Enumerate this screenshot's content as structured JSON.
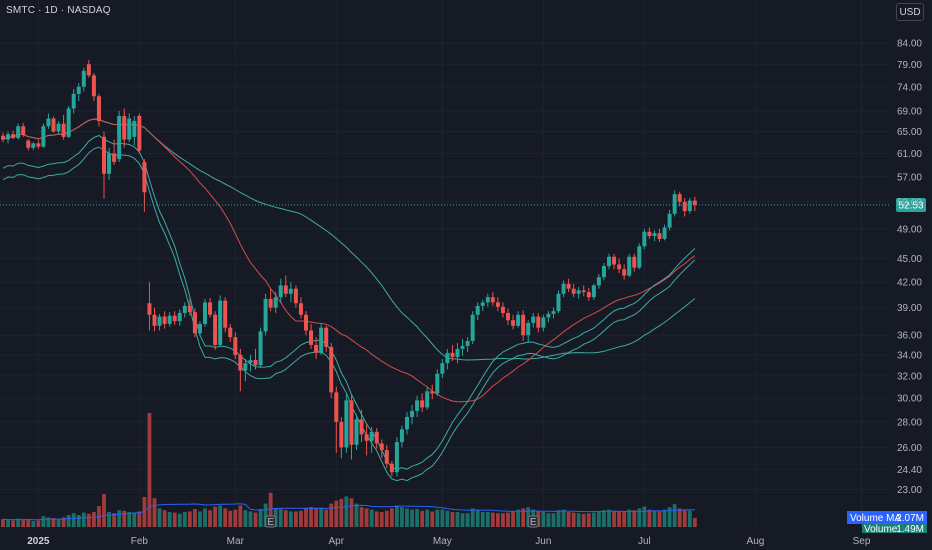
{
  "header": {
    "symbol_line": "SMTC · 1D · NASDAQ",
    "currency_button": "USD"
  },
  "colors": {
    "background": "#161a25",
    "grid": "#1f2330",
    "up": "#26a69a",
    "down": "#ef5350",
    "ma_teal": "#3fb3a9",
    "ma_red": "#e24e4e",
    "volume_ma": "#2962ff",
    "price_label": "#26a69a"
  },
  "chart_data": {
    "type": "candlestick",
    "y_scale": "log",
    "ylim": [
      22.0,
      86.5
    ],
    "y_ticks": [
      84.0,
      79.0,
      74.0,
      69.0,
      65.0,
      61.0,
      57.0,
      53.0,
      49.0,
      45.0,
      42.0,
      39.0,
      36.0,
      34.0,
      32.0,
      30.0,
      28.0,
      26.0,
      24.4,
      23.0
    ],
    "y_tick_labels": [
      "84.00",
      "79.00",
      "74.00",
      "69.00",
      "65.00",
      "61.00",
      "57.00",
      "53.00",
      "49.00",
      "45.00",
      "42.00",
      "39.00",
      "36.00",
      "34.00",
      "32.00",
      "30.00",
      "28.00",
      "26.00",
      "24.40",
      "23.00"
    ],
    "x_ticks": [
      {
        "label": "2025",
        "bar": 7
      },
      {
        "label": "Feb",
        "bar": 27
      },
      {
        "label": "Mar",
        "bar": 46
      },
      {
        "label": "Apr",
        "bar": 66
      },
      {
        "label": "May",
        "bar": 87
      },
      {
        "label": "Jun",
        "bar": 107
      },
      {
        "label": "Jul",
        "bar": 127
      },
      {
        "label": "Aug",
        "bar": 149
      },
      {
        "label": "Sep",
        "bar": 170
      }
    ],
    "last_price": 52.53,
    "last_price_label": "52.53",
    "volume_ma_label": "Volume MA",
    "volume_ma_value": "2.07M",
    "volume_label": "Volume",
    "volume_value": "1.49M",
    "earnings_markers": [
      {
        "bar": 53,
        "label": "E"
      },
      {
        "bar": 105,
        "label": "E"
      }
    ],
    "series": [
      {
        "name": "MA 1",
        "values": []
      },
      {
        "name": "MA 2",
        "values": []
      },
      {
        "name": "MA 3",
        "values": []
      },
      {
        "name": "MA 4",
        "values": []
      }
    ],
    "candles": [
      [
        64.2,
        64.8,
        63.0,
        63.5,
        1.3
      ],
      [
        63.5,
        65.0,
        62.8,
        64.5,
        1.2
      ],
      [
        64.5,
        65.2,
        63.6,
        63.8,
        1.1
      ],
      [
        63.8,
        66.5,
        63.5,
        66.0,
        1.4
      ],
      [
        66.0,
        66.6,
        64.0,
        64.4,
        1.2
      ],
      [
        63.3,
        63.6,
        61.5,
        62.0,
        1.3
      ],
      [
        62.0,
        63.0,
        61.6,
        62.8,
        1.0
      ],
      [
        62.8,
        63.4,
        61.8,
        62.2,
        1.1
      ],
      [
        62.2,
        66.5,
        62.0,
        66.0,
        1.8
      ],
      [
        66.0,
        68.5,
        65.5,
        67.5,
        1.6
      ],
      [
        67.5,
        67.9,
        64.8,
        65.0,
        1.5
      ],
      [
        65.0,
        67.0,
        64.5,
        66.5,
        1.3
      ],
      [
        66.5,
        68.2,
        63.5,
        64.0,
        1.6
      ],
      [
        64.0,
        70.0,
        63.8,
        69.5,
        2.0
      ],
      [
        69.5,
        73.5,
        68.5,
        72.5,
        2.3
      ],
      [
        72.5,
        74.8,
        71.0,
        74.0,
        2.0
      ],
      [
        74.0,
        78.2,
        73.0,
        77.5,
        2.4
      ],
      [
        79.0,
        80.0,
        76.0,
        76.5,
        2.2
      ],
      [
        76.5,
        77.0,
        71.0,
        72.0,
        2.5
      ],
      [
        72.0,
        72.5,
        66.0,
        67.0,
        3.5
      ],
      [
        64.0,
        65.0,
        53.5,
        57.5,
        5.5
      ],
      [
        57.5,
        62.0,
        56.5,
        61.0,
        2.5
      ],
      [
        61.0,
        63.5,
        59.0,
        59.5,
        2.3
      ],
      [
        60.0,
        69.0,
        59.5,
        68.0,
        2.8
      ],
      [
        68.0,
        69.5,
        62.0,
        63.5,
        2.7
      ],
      [
        63.5,
        68.5,
        63.0,
        67.5,
        2.5
      ],
      [
        64.0,
        68.0,
        62.5,
        67.0,
        2.4
      ],
      [
        68.0,
        68.5,
        61.0,
        61.5,
        2.6
      ],
      [
        59.5,
        60.0,
        51.5,
        54.5,
        5.0
      ],
      [
        39.5,
        42.0,
        36.5,
        38.2,
        19.0
      ],
      [
        38.2,
        39.0,
        36.4,
        37.0,
        4.8
      ],
      [
        37.0,
        38.3,
        36.5,
        38.0,
        3.1
      ],
      [
        38.0,
        38.6,
        36.7,
        37.2,
        2.8
      ],
      [
        37.2,
        38.5,
        36.9,
        38.1,
        2.5
      ],
      [
        38.1,
        38.6,
        37.1,
        37.5,
        2.4
      ],
      [
        37.5,
        38.8,
        37.0,
        38.4,
        2.2
      ],
      [
        38.4,
        39.6,
        37.9,
        39.2,
        2.5
      ],
      [
        39.2,
        40.0,
        38.1,
        38.5,
        2.6
      ],
      [
        38.5,
        38.9,
        35.8,
        36.2,
        3.0
      ],
      [
        36.2,
        37.5,
        35.9,
        37.2,
        2.6
      ],
      [
        37.2,
        40.0,
        36.9,
        39.6,
        3.1
      ],
      [
        39.6,
        40.1,
        37.9,
        38.2,
        2.8
      ],
      [
        38.2,
        38.6,
        34.5,
        35.0,
        3.4
      ],
      [
        35.0,
        40.4,
        34.8,
        39.8,
        3.6
      ],
      [
        39.8,
        40.2,
        36.3,
        36.8,
        3.1
      ],
      [
        36.8,
        37.2,
        35.3,
        35.8,
        2.7
      ],
      [
        35.8,
        36.3,
        33.6,
        34.0,
        2.9
      ],
      [
        34.0,
        34.6,
        30.6,
        32.5,
        3.6
      ],
      [
        32.5,
        33.6,
        31.5,
        33.2,
        2.8
      ],
      [
        33.2,
        34.0,
        32.4,
        33.5,
        2.6
      ],
      [
        33.5,
        34.6,
        32.6,
        33.0,
        2.4
      ],
      [
        33.0,
        36.8,
        32.8,
        36.4,
        3.0
      ],
      [
        36.4,
        40.6,
        36.0,
        40.0,
        3.9
      ],
      [
        40.0,
        41.2,
        38.6,
        39.0,
        5.7
      ],
      [
        39.0,
        40.8,
        38.4,
        40.2,
        3.1
      ],
      [
        40.2,
        42.4,
        39.5,
        41.6,
        3.0
      ],
      [
        41.6,
        42.8,
        40.2,
        40.6,
        2.8
      ],
      [
        40.6,
        42.0,
        39.6,
        41.2,
        2.6
      ],
      [
        41.2,
        41.6,
        39.0,
        39.5,
        2.6
      ],
      [
        39.5,
        40.2,
        37.8,
        38.2,
        2.7
      ],
      [
        38.2,
        38.6,
        36.0,
        36.5,
        3.1
      ],
      [
        36.5,
        37.2,
        34.6,
        35.0,
        3.3
      ],
      [
        35.0,
        35.8,
        33.6,
        34.2,
        3.1
      ],
      [
        34.2,
        37.2,
        34.0,
        36.8,
        3.2
      ],
      [
        36.8,
        37.0,
        34.3,
        34.8,
        2.9
      ],
      [
        34.8,
        35.2,
        30.0,
        30.5,
        3.9
      ],
      [
        30.5,
        31.0,
        25.6,
        28.0,
        4.4
      ],
      [
        28.0,
        28.4,
        25.2,
        26.0,
        4.7
      ],
      [
        26.0,
        30.4,
        25.6,
        29.8,
        5.1
      ],
      [
        29.8,
        30.2,
        25.1,
        26.2,
        4.8
      ],
      [
        26.2,
        28.6,
        25.8,
        28.2,
        3.9
      ],
      [
        28.2,
        29.0,
        26.4,
        27.0,
        3.3
      ],
      [
        27.0,
        27.8,
        25.4,
        26.5,
        3.1
      ],
      [
        26.5,
        27.6,
        25.6,
        27.2,
        2.9
      ],
      [
        27.2,
        27.5,
        25.9,
        26.3,
        2.6
      ],
      [
        26.3,
        26.6,
        25.2,
        25.8,
        2.5
      ],
      [
        25.8,
        26.2,
        24.5,
        24.8,
        2.7
      ],
      [
        24.8,
        25.0,
        23.9,
        24.2,
        3.1
      ],
      [
        24.2,
        26.8,
        23.9,
        26.4,
        3.6
      ],
      [
        26.4,
        27.7,
        26.0,
        27.4,
        3.3
      ],
      [
        27.4,
        28.8,
        27.0,
        28.4,
        3.1
      ],
      [
        28.4,
        29.4,
        27.8,
        28.9,
        2.9
      ],
      [
        28.9,
        30.2,
        28.4,
        29.8,
        3.0
      ],
      [
        29.8,
        30.4,
        28.8,
        29.2,
        2.7
      ],
      [
        29.2,
        31.0,
        29.0,
        30.6,
        2.9
      ],
      [
        30.6,
        31.2,
        29.9,
        30.4,
        2.6
      ],
      [
        30.4,
        32.6,
        30.2,
        32.2,
        2.9
      ],
      [
        32.2,
        33.6,
        31.8,
        33.2,
        2.9
      ],
      [
        33.2,
        34.6,
        32.6,
        34.2,
        2.7
      ],
      [
        34.2,
        35.0,
        33.4,
        33.8,
        2.5
      ],
      [
        33.8,
        35.2,
        33.2,
        34.6,
        2.5
      ],
      [
        34.6,
        35.6,
        33.9,
        34.9,
        2.3
      ],
      [
        34.9,
        35.8,
        34.3,
        35.4,
        2.3
      ],
      [
        35.4,
        38.6,
        35.1,
        38.2,
        3.1
      ],
      [
        38.2,
        39.6,
        37.6,
        39.2,
        2.9
      ],
      [
        39.2,
        39.9,
        38.6,
        39.6,
        2.5
      ],
      [
        39.6,
        40.6,
        39.1,
        40.2,
        2.5
      ],
      [
        40.2,
        40.8,
        39.2,
        39.6,
        2.4
      ],
      [
        39.6,
        40.2,
        38.6,
        39.1,
        2.3
      ],
      [
        39.1,
        39.6,
        37.9,
        38.4,
        2.3
      ],
      [
        38.4,
        38.9,
        37.1,
        37.6,
        2.4
      ],
      [
        37.6,
        38.2,
        36.6,
        37.0,
        2.6
      ],
      [
        37.0,
        38.6,
        36.8,
        38.2,
        2.9
      ],
      [
        38.2,
        38.7,
        35.4,
        36.0,
        3.1
      ],
      [
        36.0,
        37.6,
        35.2,
        37.3,
        3.3
      ],
      [
        37.3,
        38.4,
        36.8,
        38.0,
        2.9
      ],
      [
        38.0,
        38.4,
        36.3,
        36.8,
        2.6
      ],
      [
        36.8,
        38.2,
        36.4,
        37.9,
        2.5
      ],
      [
        37.9,
        38.6,
        37.4,
        38.3,
        2.3
      ],
      [
        38.3,
        39.0,
        37.8,
        38.6,
        2.3
      ],
      [
        38.6,
        41.0,
        38.4,
        40.6,
        2.8
      ],
      [
        40.6,
        42.2,
        40.2,
        41.8,
        2.9
      ],
      [
        41.8,
        42.4,
        40.8,
        41.2,
        2.5
      ],
      [
        41.2,
        41.8,
        40.2,
        40.6,
        2.4
      ],
      [
        40.6,
        41.4,
        40.0,
        41.0,
        2.3
      ],
      [
        41.0,
        41.6,
        40.3,
        40.8,
        2.2
      ],
      [
        40.8,
        41.3,
        39.8,
        40.2,
        2.3
      ],
      [
        40.2,
        41.8,
        39.9,
        41.6,
        2.4
      ],
      [
        41.6,
        43.0,
        41.2,
        42.6,
        2.6
      ],
      [
        42.6,
        44.4,
        42.2,
        44.0,
        2.8
      ],
      [
        44.0,
        45.6,
        43.6,
        45.2,
        2.9
      ],
      [
        45.2,
        45.6,
        43.6,
        44.2,
        2.7
      ],
      [
        44.2,
        45.0,
        43.1,
        43.6,
        2.6
      ],
      [
        43.6,
        44.2,
        42.3,
        42.8,
        2.5
      ],
      [
        42.8,
        45.6,
        42.6,
        45.2,
        2.9
      ],
      [
        45.2,
        45.6,
        43.3,
        43.8,
        2.8
      ],
      [
        43.8,
        47.0,
        43.6,
        46.6,
        3.1
      ],
      [
        46.6,
        49.0,
        46.2,
        48.6,
        3.4
      ],
      [
        48.6,
        49.2,
        47.6,
        48.0,
        2.9
      ],
      [
        48.0,
        48.8,
        47.3,
        48.4,
        2.7
      ],
      [
        48.4,
        49.0,
        47.2,
        47.6,
        2.6
      ],
      [
        47.6,
        49.6,
        47.4,
        49.2,
        2.9
      ],
      [
        49.2,
        51.8,
        48.8,
        51.2,
        3.3
      ],
      [
        51.2,
        54.8,
        50.8,
        54.2,
        3.8
      ],
      [
        54.2,
        54.6,
        52.3,
        53.0,
        3.1
      ],
      [
        53.0,
        53.6,
        50.8,
        51.6,
        2.8
      ],
      [
        51.6,
        53.6,
        51.2,
        53.2,
        2.7
      ],
      [
        53.2,
        53.8,
        51.6,
        52.53,
        1.5
      ]
    ]
  }
}
